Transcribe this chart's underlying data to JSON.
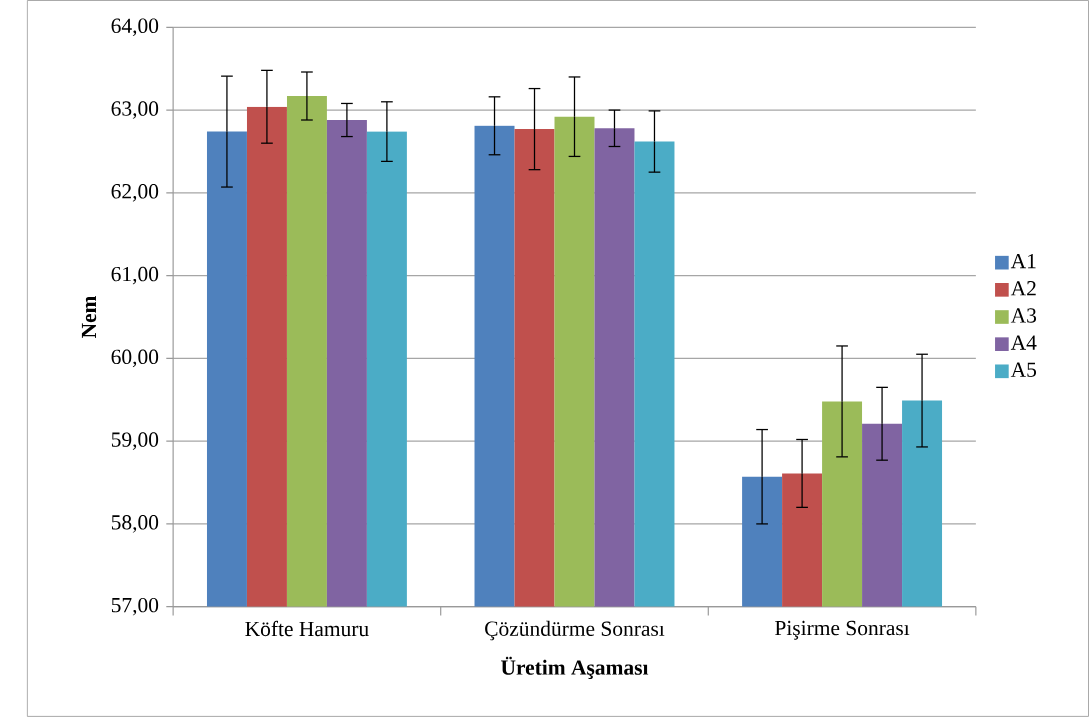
{
  "chart_data": {
    "type": "bar",
    "xlabel": "Üretim Aşaması",
    "ylabel": "Nem",
    "categories": [
      "Köfte Hamuru",
      "Çözündürme Sonrası",
      "Pişirme Sonrası"
    ],
    "series": [
      {
        "name": "A1",
        "color": "#4f81bd",
        "values": [
          62.74,
          62.81,
          58.57
        ],
        "errors": [
          0.67,
          0.35,
          0.57
        ]
      },
      {
        "name": "A2",
        "color": "#c0504d",
        "values": [
          63.04,
          62.77,
          58.61
        ],
        "errors": [
          0.44,
          0.49,
          0.41
        ]
      },
      {
        "name": "A3",
        "color": "#9bbb59",
        "values": [
          63.17,
          62.92,
          59.48
        ],
        "errors": [
          0.29,
          0.48,
          0.67
        ]
      },
      {
        "name": "A4",
        "color": "#8064a2",
        "values": [
          62.88,
          62.78,
          59.21
        ],
        "errors": [
          0.2,
          0.22,
          0.44
        ]
      },
      {
        "name": "A5",
        "color": "#4bacc6",
        "values": [
          62.74,
          62.62,
          59.49
        ],
        "errors": [
          0.36,
          0.37,
          0.56
        ]
      }
    ],
    "ylim": [
      57,
      64
    ],
    "yticks": [
      {
        "value": 57,
        "label": "57,00"
      },
      {
        "value": 58,
        "label": "58,00"
      },
      {
        "value": 59,
        "label": "59,00"
      },
      {
        "value": 60,
        "label": "60,00"
      },
      {
        "value": 61,
        "label": "61,00"
      },
      {
        "value": 62,
        "label": "62,00"
      },
      {
        "value": 63,
        "label": "63,00"
      },
      {
        "value": 64,
        "label": "64,00"
      }
    ],
    "grid": "y",
    "legend": "right"
  }
}
